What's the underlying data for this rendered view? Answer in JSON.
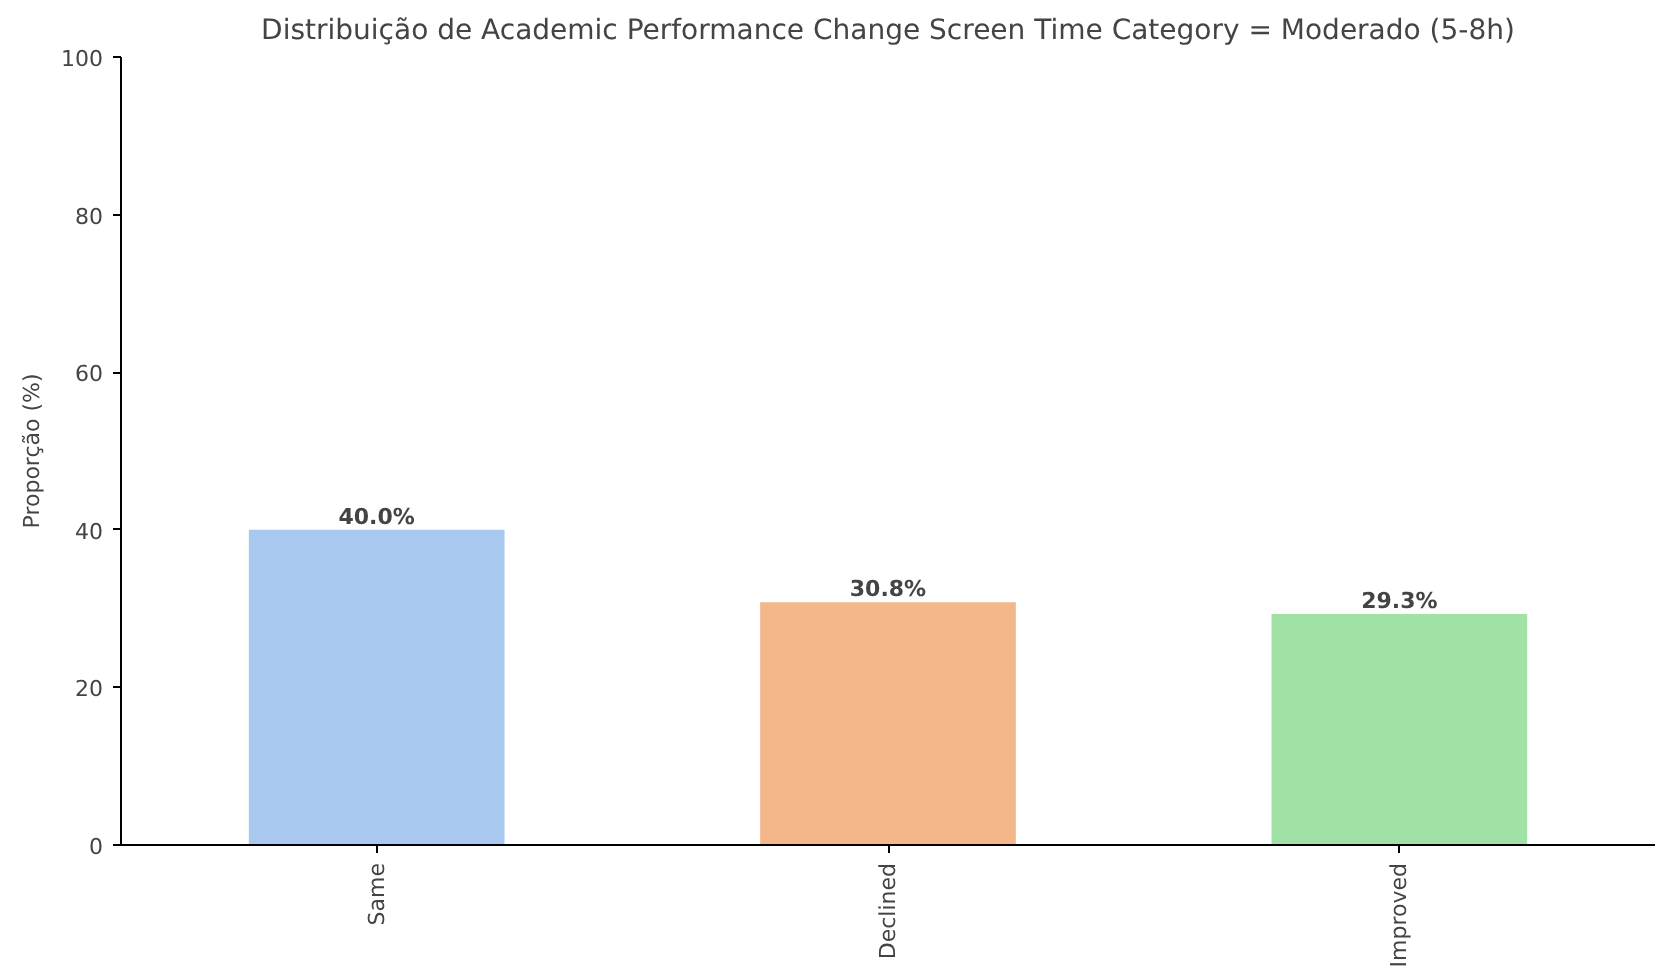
{
  "chart_data": {
    "type": "bar",
    "title": "Distribuição de Academic Performance Change Screen Time Category = Moderado (5-8h)",
    "ylabel": "Proporção (%)",
    "categories": [
      "Same",
      "Declined",
      "Improved"
    ],
    "values": [
      40.0,
      30.8,
      29.3
    ],
    "value_labels": [
      "40.0%",
      "30.8%",
      "29.3%"
    ],
    "colors": [
      "#a8c8ef",
      "#f3b78a",
      "#a0e2a5"
    ],
    "ylim": [
      0,
      100
    ],
    "yticks": [
      0,
      20,
      40,
      60,
      80,
      100
    ],
    "grid": false
  }
}
